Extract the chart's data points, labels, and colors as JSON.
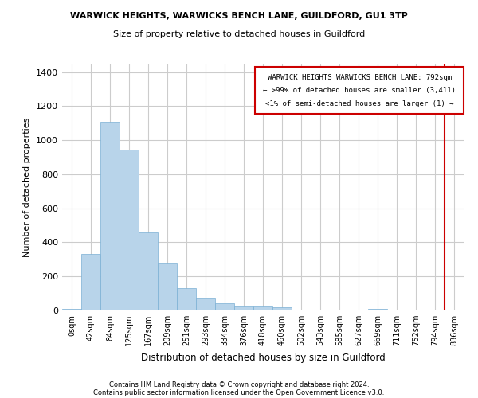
{
  "title1": "WARWICK HEIGHTS, WARWICKS BENCH LANE, GUILDFORD, GU1 3TP",
  "title2": "Size of property relative to detached houses in Guildford",
  "xlabel": "Distribution of detached houses by size in Guildford",
  "ylabel": "Number of detached properties",
  "footer1": "Contains HM Land Registry data © Crown copyright and database right 2024.",
  "footer2": "Contains public sector information licensed under the Open Government Licence v3.0.",
  "bar_labels": [
    "0sqm",
    "42sqm",
    "84sqm",
    "125sqm",
    "167sqm",
    "209sqm",
    "251sqm",
    "293sqm",
    "334sqm",
    "376sqm",
    "418sqm",
    "460sqm",
    "502sqm",
    "543sqm",
    "585sqm",
    "627sqm",
    "669sqm",
    "711sqm",
    "752sqm",
    "794sqm",
    "836sqm"
  ],
  "bar_values": [
    10,
    330,
    1110,
    945,
    460,
    278,
    130,
    70,
    40,
    25,
    25,
    20,
    0,
    0,
    0,
    0,
    10,
    0,
    0,
    0,
    0
  ],
  "bar_color": "#b8d4ea",
  "bar_edge_color": "#7aafd4",
  "ylim": [
    0,
    1450
  ],
  "yticks": [
    0,
    200,
    400,
    600,
    800,
    1000,
    1200,
    1400
  ],
  "grid_color": "#cccccc",
  "annotation_box_text1": "WARWICK HEIGHTS WARWICKS BENCH LANE: 792sqm",
  "annotation_box_text2": "← >99% of detached houses are smaller (3,411)",
  "annotation_box_text3": "<1% of semi-detached houses are larger (1) →",
  "box_edge_color": "#cc0000",
  "line_color": "#cc0000",
  "background_color": "#ffffff"
}
